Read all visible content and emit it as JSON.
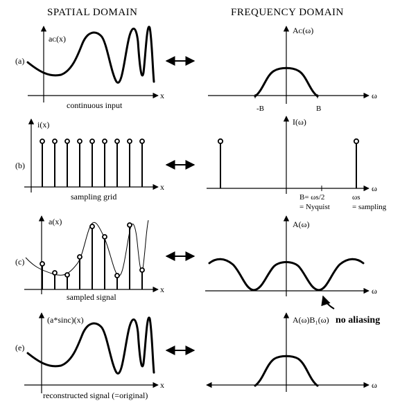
{
  "headers": {
    "spatial": "SPATIAL DOMAIN",
    "frequency": "FREQUENCY DOMAIN"
  },
  "rows": [
    {
      "label": "(a)",
      "spatial_fn": "aᴄ(x)",
      "freq_fn": "Aᴄ(ω)",
      "caption": "continuous input",
      "freq_ticks": [
        "-B",
        "B"
      ]
    },
    {
      "label": "(b)",
      "spatial_fn": "i(x)",
      "freq_fn": "I(ω)",
      "caption": "sampling grid",
      "freq_notes": {
        "b_eq": "B= ωs/2",
        "nyquist": "= Nyquist",
        "omega_s": "ωs",
        "sampling": "= sampling"
      }
    },
    {
      "label": "(c)",
      "spatial_fn": "a(x)",
      "freq_fn": "A(ω)",
      "caption": "sampled signal"
    },
    {
      "label": "(e)",
      "spatial_fn": "(a*sinc)(x)",
      "freq_fn": "A(ω)B₁(ω)",
      "caption": "reconstructed signal (=original)",
      "annotation": "no aliasing"
    }
  ],
  "axis_labels": {
    "x": "x",
    "omega": "ω"
  }
}
